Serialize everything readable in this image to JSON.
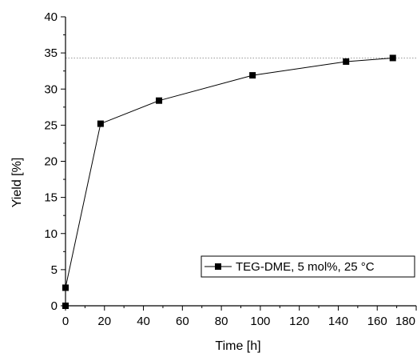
{
  "chart_data": {
    "type": "line",
    "xlabel": "Time [h]",
    "ylabel": "Yield [%]",
    "xlim": [
      0,
      180
    ],
    "ylim": [
      0,
      40
    ],
    "x_ticks": [
      0,
      20,
      40,
      60,
      80,
      100,
      120,
      140,
      160,
      180
    ],
    "y_ticks": [
      0,
      5,
      10,
      15,
      20,
      25,
      30,
      35,
      40
    ],
    "x_tick_labels": [
      "0",
      "20",
      "40",
      "60",
      "80",
      "100",
      "120",
      "140",
      "160",
      "180"
    ],
    "y_tick_labels": [
      "0",
      "5",
      "10",
      "15",
      "20",
      "25",
      "30",
      "35",
      "40"
    ],
    "grid": false,
    "legend_position": "bottom-right",
    "reference_line": {
      "y": 34.3,
      "style": "dotted"
    },
    "series": [
      {
        "name": "TEG-DME, 5 mol%, 25 °C",
        "marker": "square",
        "x": [
          0,
          18,
          48,
          96,
          144,
          168
        ],
        "y": [
          2.5,
          25.2,
          28.4,
          31.9,
          33.8,
          34.3
        ]
      }
    ],
    "extra_points": [
      {
        "x": 0,
        "y": 0
      }
    ]
  },
  "colors": {
    "series": "#000000",
    "reference_line": "#999999"
  }
}
